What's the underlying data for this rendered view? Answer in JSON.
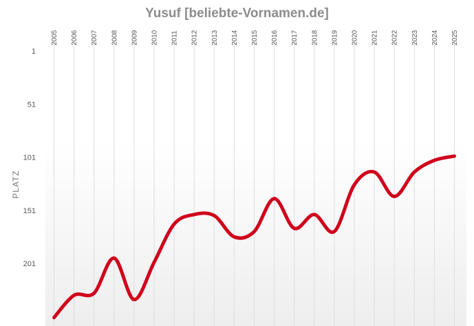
{
  "chart_data": {
    "type": "line",
    "title": "Yusuf [beliebte-Vornamen.de]",
    "xlabel": "",
    "ylabel": "PLATZ",
    "x": [
      2005,
      2006,
      2007,
      2008,
      2009,
      2010,
      2011,
      2012,
      2013,
      2014,
      2015,
      2016,
      2017,
      2018,
      2019,
      2020,
      2021,
      2022,
      2023,
      2024,
      2025
    ],
    "series": [
      {
        "name": "",
        "values": [
          252,
          231,
          229,
          196,
          235,
          200,
          164,
          155,
          156,
          176,
          171,
          140,
          168,
          155,
          171,
          127,
          115,
          138,
          115,
          104,
          100
        ]
      }
    ],
    "y_ticks": [
      1,
      51,
      101,
      151,
      201
    ],
    "ylim": [
      1,
      252
    ],
    "y_inverted": true,
    "grid": "vertical",
    "line_color": "#d0021b"
  }
}
